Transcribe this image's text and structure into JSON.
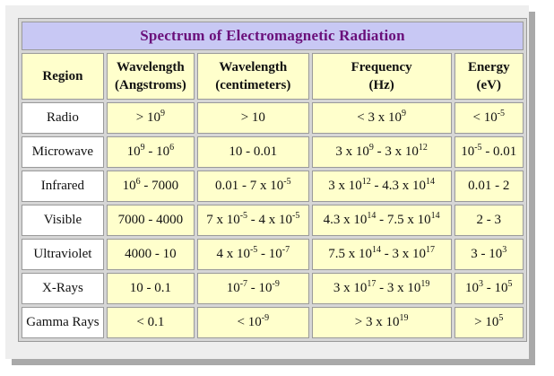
{
  "title": "Spectrum of Electromagnetic Radiation",
  "headers": [
    [
      "Region"
    ],
    [
      "Wavelength",
      "(Angstroms)"
    ],
    [
      "Wavelength",
      "(centimeters)"
    ],
    [
      "Frequency",
      "(Hz)"
    ],
    [
      "Energy",
      "(eV)"
    ]
  ],
  "rows": [
    {
      "region": "Radio",
      "cells": [
        [
          [
            "> 10",
            "9"
          ]
        ],
        [
          [
            "> 10",
            ""
          ]
        ],
        [
          [
            "< 3 x 10",
            "9"
          ]
        ],
        [
          [
            "< 10",
            "-5"
          ]
        ]
      ]
    },
    {
      "region": "Microwave",
      "cells": [
        [
          [
            "10",
            "9"
          ],
          [
            " - 10",
            "6"
          ]
        ],
        [
          [
            "10 - 0.01",
            ""
          ]
        ],
        [
          [
            "3 x 10",
            "9"
          ],
          [
            " - 3 x 10",
            "12"
          ]
        ],
        [
          [
            "10",
            "-5"
          ],
          [
            " - 0.01",
            ""
          ]
        ]
      ]
    },
    {
      "region": "Infrared",
      "cells": [
        [
          [
            "10",
            "6"
          ],
          [
            " - 7000",
            ""
          ]
        ],
        [
          [
            "0.01 - 7 x 10",
            "-5"
          ]
        ],
        [
          [
            "3 x 10",
            "12"
          ],
          [
            " - 4.3 x 10",
            "14"
          ]
        ],
        [
          [
            "0.01 - 2",
            ""
          ]
        ]
      ]
    },
    {
      "region": "Visible",
      "cells": [
        [
          [
            "7000 - 4000",
            ""
          ]
        ],
        [
          [
            "7 x 10",
            "-5"
          ],
          [
            " - 4 x 10",
            "-5"
          ]
        ],
        [
          [
            "4.3 x 10",
            "14"
          ],
          [
            " - 7.5 x 10",
            "14"
          ]
        ],
        [
          [
            "2 - 3",
            ""
          ]
        ]
      ]
    },
    {
      "region": "Ultraviolet",
      "cells": [
        [
          [
            "4000 - 10",
            ""
          ]
        ],
        [
          [
            "4 x 10",
            "-5"
          ],
          [
            " - 10",
            "-7"
          ]
        ],
        [
          [
            "7.5 x 10",
            "14"
          ],
          [
            " - 3 x 10",
            "17"
          ]
        ],
        [
          [
            "3 - 10",
            "3"
          ]
        ]
      ]
    },
    {
      "region": "X-Rays",
      "cells": [
        [
          [
            "10 - 0.1",
            ""
          ]
        ],
        [
          [
            "10",
            "-7"
          ],
          [
            " - 10",
            "-9"
          ]
        ],
        [
          [
            "3 x 10",
            "17"
          ],
          [
            " - 3 x 10",
            "19"
          ]
        ],
        [
          [
            "10",
            "3"
          ],
          [
            " - 10",
            "5"
          ]
        ]
      ]
    },
    {
      "region": "Gamma Rays",
      "cells": [
        [
          [
            "< 0.1",
            ""
          ]
        ],
        [
          [
            "< 10",
            "-9"
          ]
        ],
        [
          [
            "> 3 x 10",
            "19"
          ]
        ],
        [
          [
            "> 10",
            "5"
          ]
        ]
      ]
    }
  ]
}
